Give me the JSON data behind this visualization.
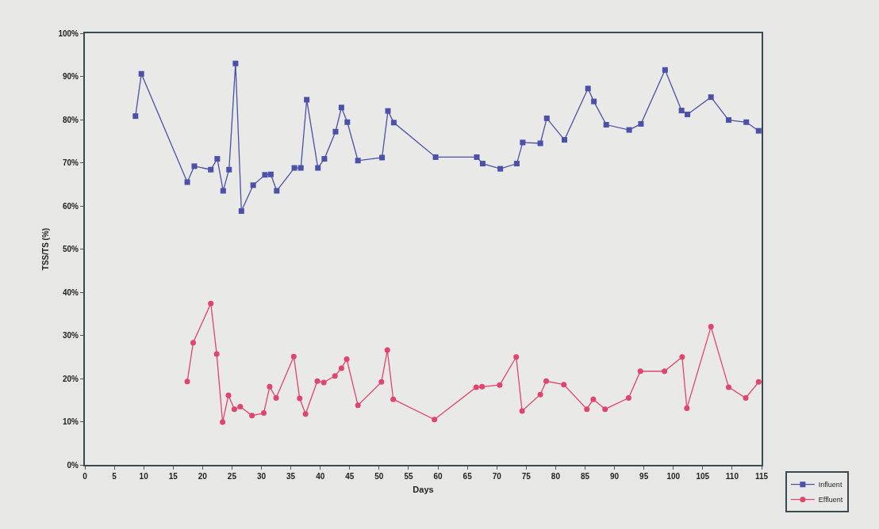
{
  "chart_data": {
    "type": "line",
    "xlabel": "Days",
    "ylabel": "TSS/TS (%)",
    "xlim": [
      0,
      115
    ],
    "xticks": [
      0,
      5,
      10,
      15,
      20,
      25,
      30,
      35,
      40,
      45,
      50,
      55,
      60,
      65,
      70,
      75,
      80,
      85,
      90,
      95,
      100,
      105,
      110,
      115
    ],
    "ylim": [
      0,
      100
    ],
    "yticks": [
      {
        "value": 0,
        "label": "0%"
      },
      {
        "value": 10,
        "label": "10%"
      },
      {
        "value": 20,
        "label": "20%"
      },
      {
        "value": 30,
        "label": "30%"
      },
      {
        "value": 40,
        "label": "40%"
      },
      {
        "value": 50,
        "label": "50%"
      },
      {
        "value": 60,
        "label": "60%"
      },
      {
        "value": 70,
        "label": "70%"
      },
      {
        "value": 80,
        "label": "80%"
      },
      {
        "value": 90,
        "label": "90%"
      },
      {
        "value": 100,
        "label": "100%"
      }
    ],
    "grid": false,
    "legend": "bottom right",
    "line_style": "solid",
    "series": [
      {
        "name": "Influent",
        "color": "#4b50a8",
        "marker": "square",
        "x": [
          8.6,
          9.6,
          17.4,
          18.6,
          21.4,
          22.5,
          23.5,
          24.5,
          25.6,
          26.6,
          28.6,
          30.6,
          31.6,
          32.6,
          35.6,
          36.7,
          37.7,
          39.6,
          40.7,
          42.6,
          43.6,
          44.6,
          46.4,
          50.5,
          51.5,
          52.5,
          59.6,
          66.6,
          67.6,
          70.6,
          73.4,
          74.4,
          77.4,
          78.5,
          81.5,
          85.5,
          86.5,
          88.6,
          92.5,
          94.5,
          98.6,
          101.4,
          102.4,
          106.4,
          109.4,
          112.4,
          114.5
        ],
        "values": [
          80.8,
          90.6,
          65.5,
          69.2,
          68.4,
          70.9,
          63.5,
          68.4,
          93.0,
          58.8,
          64.8,
          67.2,
          67.3,
          63.5,
          68.8,
          68.8,
          84.6,
          68.8,
          70.9,
          77.2,
          82.8,
          79.4,
          70.5,
          71.2,
          82.0,
          79.3,
          71.3,
          71.3,
          69.8,
          68.6,
          69.8,
          74.7,
          74.5,
          80.3,
          75.3,
          87.2,
          84.2,
          78.8,
          77.6,
          79.0,
          91.5,
          82.1,
          81.2,
          85.2,
          79.9,
          79.4,
          77.4
        ]
      },
      {
        "name": "Effluent",
        "color": "#e0456e",
        "marker": "circle",
        "x": [
          17.4,
          18.4,
          21.4,
          22.4,
          23.4,
          24.4,
          25.4,
          26.4,
          28.4,
          30.4,
          31.4,
          32.5,
          35.5,
          36.5,
          37.5,
          39.5,
          40.6,
          42.5,
          43.6,
          44.5,
          46.4,
          50.4,
          51.4,
          52.4,
          59.4,
          66.5,
          67.5,
          70.5,
          73.3,
          74.3,
          77.4,
          78.4,
          81.4,
          85.3,
          86.4,
          88.4,
          92.4,
          94.4,
          98.5,
          101.5,
          102.3,
          106.4,
          109.4,
          112.3,
          114.5
        ],
        "values": [
          19.3,
          28.3,
          37.4,
          25.7,
          9.9,
          16.1,
          12.9,
          13.5,
          11.4,
          12.0,
          18.1,
          15.5,
          25.1,
          15.4,
          11.8,
          19.4,
          19.1,
          20.6,
          22.4,
          24.5,
          13.8,
          19.2,
          26.6,
          15.2,
          10.5,
          18.0,
          18.1,
          18.5,
          25.0,
          12.5,
          16.3,
          19.4,
          18.6,
          12.9,
          15.2,
          12.9,
          15.5,
          21.7,
          21.7,
          25.0,
          13.1,
          32.0,
          18.0,
          15.5,
          19.2
        ]
      }
    ]
  }
}
